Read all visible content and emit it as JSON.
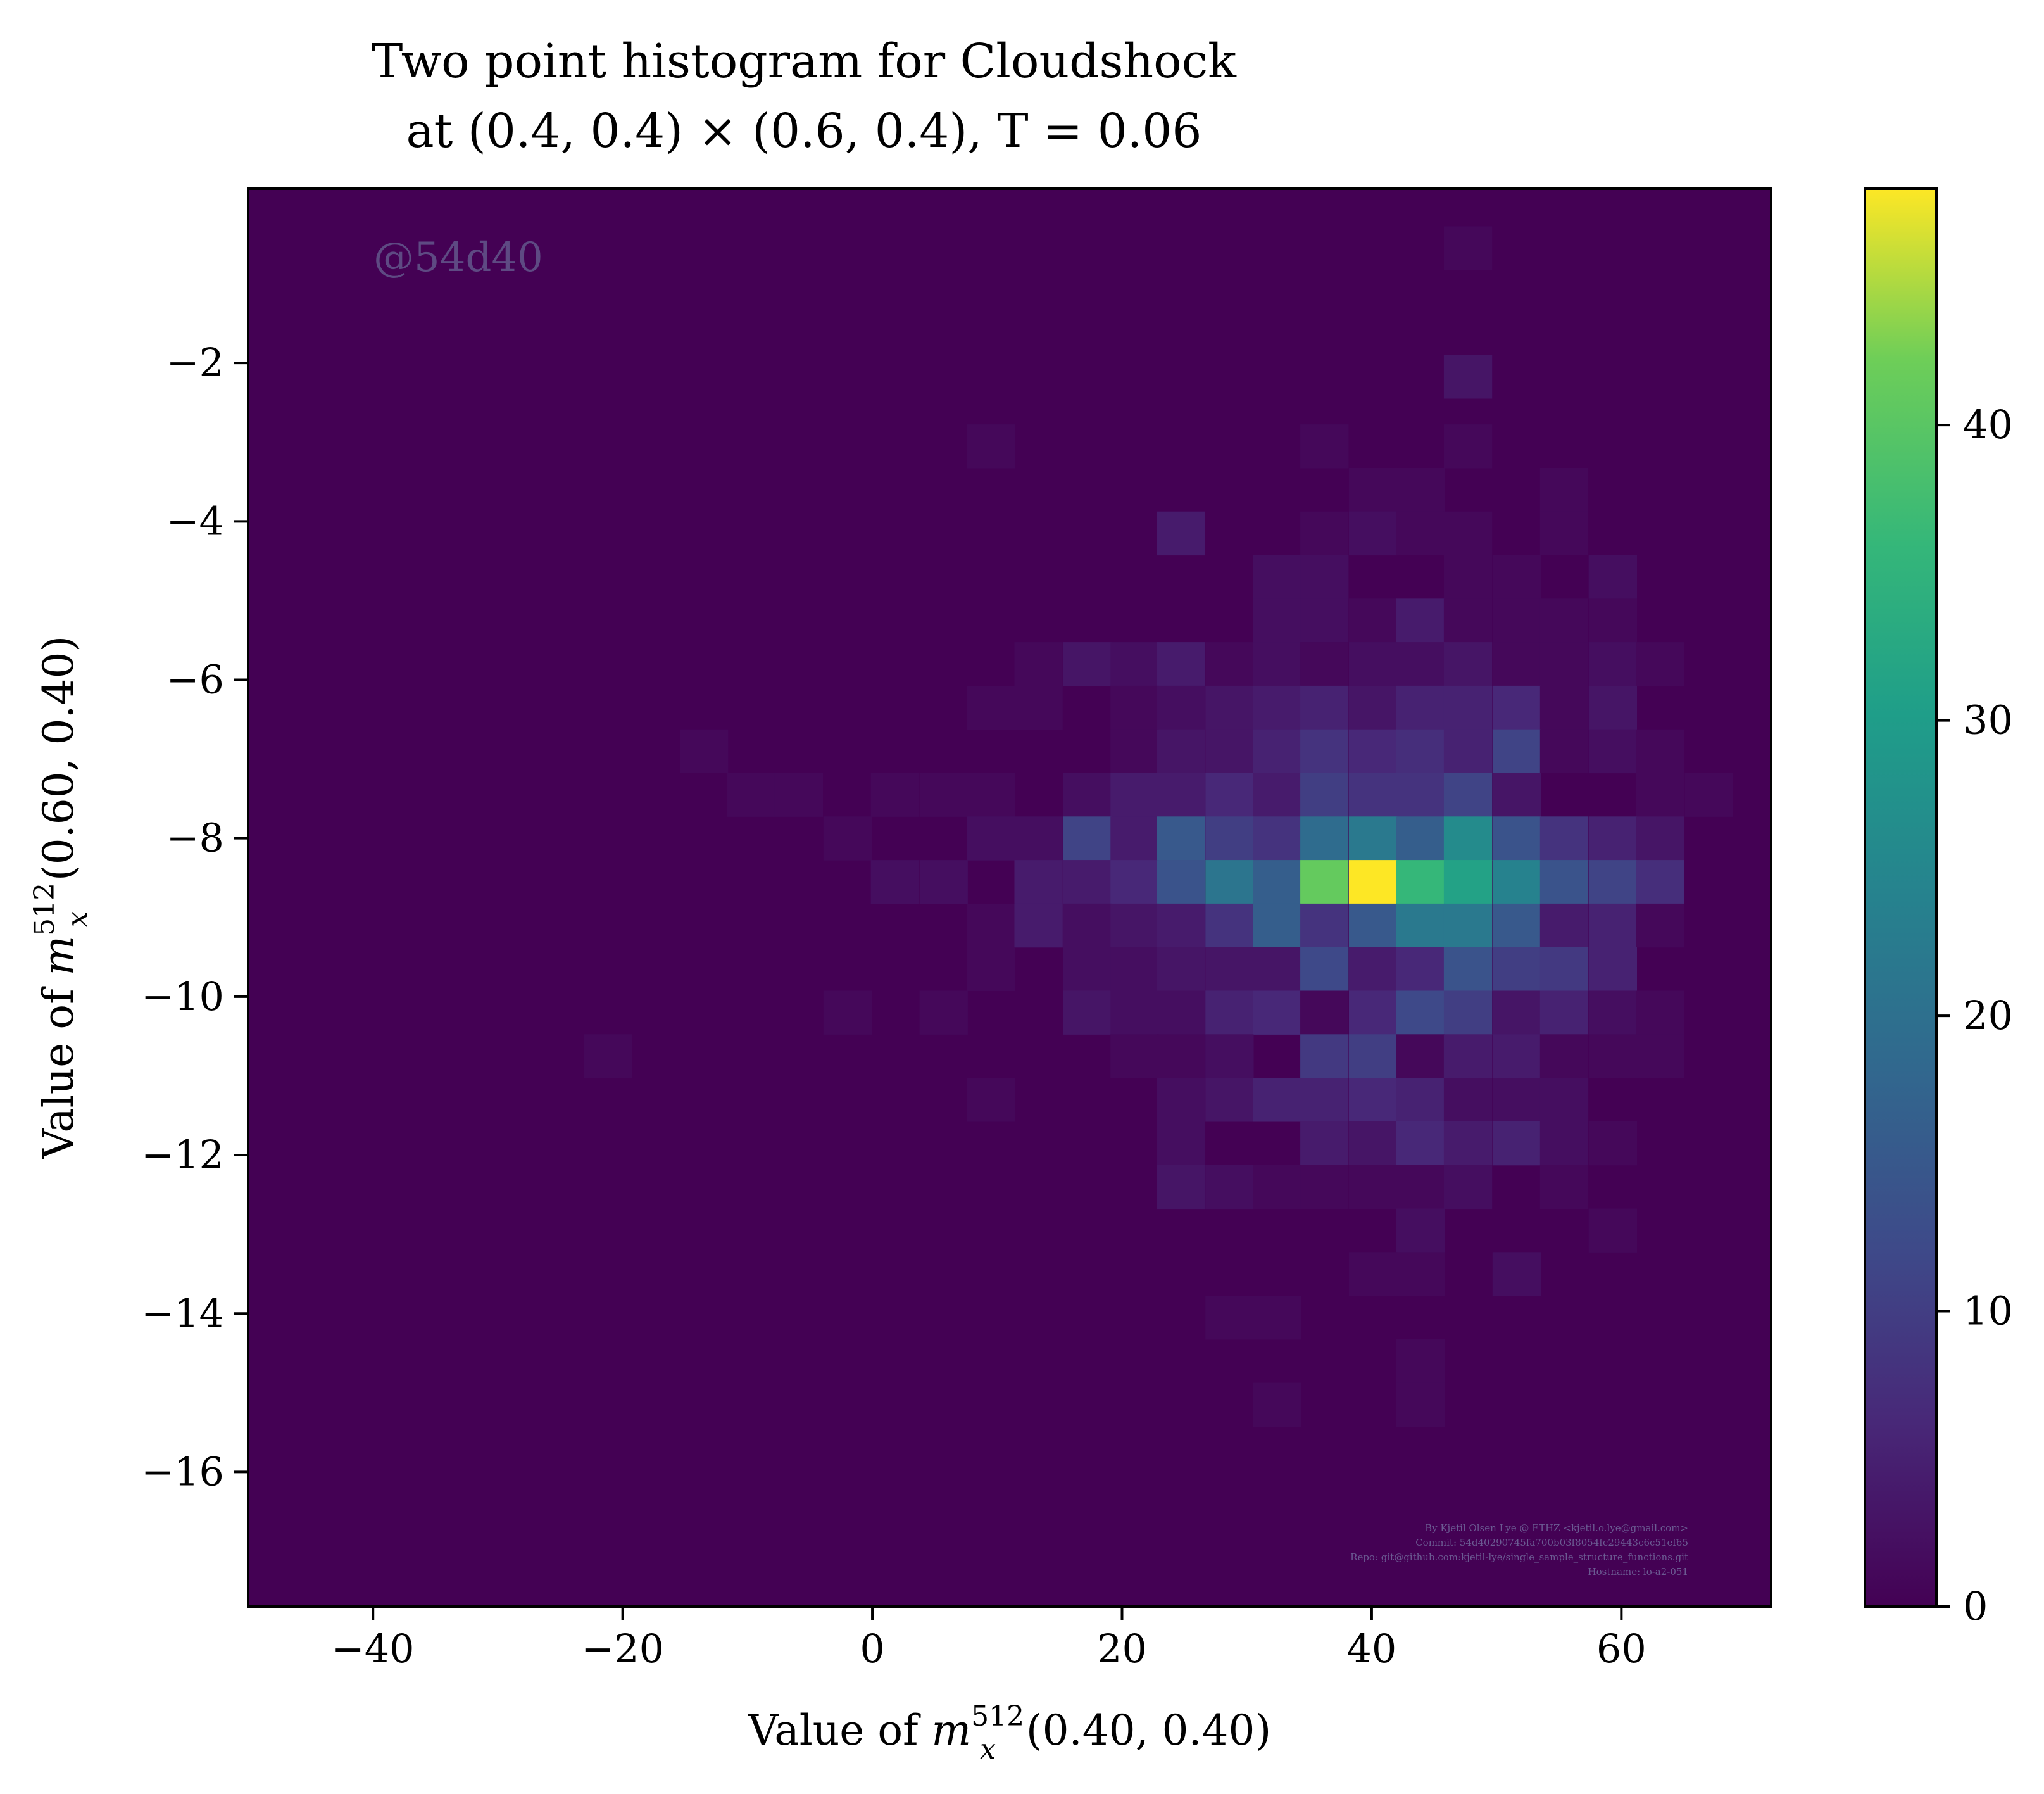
{
  "chart_data": {
    "type": "heatmap",
    "title_line1": "Two point histogram for Cloudshock",
    "title_line2": "at (0.4, 0.4) × (0.6, 0.4), T = 0.06",
    "xlabel": {
      "prefix": "Value of ",
      "var": "m",
      "sup": "512",
      "sub": "x",
      "suffix": "(0.40, 0.40)"
    },
    "ylabel": {
      "prefix": "Value of ",
      "var": "m",
      "sup": "512",
      "sub": "x",
      "suffix": "(0.60, 0.40)"
    },
    "xlim": [
      -50,
      72
    ],
    "ylim": [
      -17.7,
      0.2
    ],
    "xticks": [
      {
        "value": -40,
        "label": "−40"
      },
      {
        "value": -20,
        "label": "−20"
      },
      {
        "value": 0,
        "label": "0"
      },
      {
        "value": 20,
        "label": "20"
      },
      {
        "value": 40,
        "label": "40"
      },
      {
        "value": 60,
        "label": "60"
      }
    ],
    "yticks": [
      {
        "value": -2,
        "label": "−2"
      },
      {
        "value": -4,
        "label": "−4"
      },
      {
        "value": -6,
        "label": "−6"
      },
      {
        "value": -8,
        "label": "−8"
      },
      {
        "value": -10,
        "label": "−10"
      },
      {
        "value": -12,
        "label": "−12"
      },
      {
        "value": -14,
        "label": "−14"
      },
      {
        "value": -16,
        "label": "−16"
      }
    ],
    "colorbar": {
      "min": 0,
      "max": 48,
      "ticks": [
        {
          "value": 0,
          "label": "0"
        },
        {
          "value": 10,
          "label": "10"
        },
        {
          "value": 20,
          "label": "20"
        },
        {
          "value": 30,
          "label": "30"
        },
        {
          "value": 40,
          "label": "40"
        }
      ]
    },
    "bin_width_x": 3.84,
    "bin_height_y": 0.55,
    "cells": [
      [
        47.7,
        -0.55,
        1
      ],
      [
        47.7,
        -2.17,
        3
      ],
      [
        9.5,
        -3.05,
        1
      ],
      [
        36.2,
        -3.05,
        1
      ],
      [
        47.7,
        -3.05,
        1
      ],
      [
        40.1,
        -3.6,
        1
      ],
      [
        43.9,
        -3.6,
        1
      ],
      [
        55.4,
        -3.6,
        1
      ],
      [
        24.7,
        -4.15,
        4
      ],
      [
        36.2,
        -4.15,
        1
      ],
      [
        40.1,
        -4.15,
        2
      ],
      [
        43.9,
        -4.15,
        1
      ],
      [
        47.7,
        -4.15,
        1
      ],
      [
        55.4,
        -4.15,
        1
      ],
      [
        32.4,
        -4.7,
        2
      ],
      [
        36.2,
        -4.7,
        2
      ],
      [
        47.7,
        -4.7,
        1
      ],
      [
        51.6,
        -4.7,
        1
      ],
      [
        59.3,
        -4.7,
        2
      ],
      [
        32.4,
        -5.25,
        2
      ],
      [
        36.2,
        -5.25,
        2
      ],
      [
        40.1,
        -5.25,
        1
      ],
      [
        43.9,
        -5.25,
        4
      ],
      [
        47.7,
        -5.25,
        1
      ],
      [
        51.6,
        -5.25,
        1
      ],
      [
        55.4,
        -5.25,
        1
      ],
      [
        59.3,
        -5.25,
        1
      ],
      [
        13.3,
        -5.8,
        1
      ],
      [
        17.2,
        -5.8,
        3
      ],
      [
        21.0,
        -5.8,
        2
      ],
      [
        24.7,
        -5.8,
        4
      ],
      [
        28.6,
        -5.8,
        1
      ],
      [
        32.4,
        -5.8,
        2
      ],
      [
        36.2,
        -5.8,
        1
      ],
      [
        40.1,
        -5.8,
        2
      ],
      [
        43.9,
        -5.8,
        2
      ],
      [
        47.7,
        -5.8,
        3
      ],
      [
        51.6,
        -5.8,
        1
      ],
      [
        55.4,
        -5.8,
        1
      ],
      [
        59.3,
        -5.8,
        2
      ],
      [
        63.1,
        -5.8,
        1
      ],
      [
        9.5,
        -6.35,
        1
      ],
      [
        13.3,
        -6.35,
        1
      ],
      [
        21.0,
        -6.35,
        1
      ],
      [
        24.7,
        -6.35,
        2
      ],
      [
        28.6,
        -6.35,
        3
      ],
      [
        32.4,
        -6.35,
        4
      ],
      [
        36.2,
        -6.35,
        5
      ],
      [
        40.1,
        -6.35,
        3
      ],
      [
        43.9,
        -6.35,
        5
      ],
      [
        47.7,
        -6.35,
        5
      ],
      [
        51.6,
        -6.35,
        6
      ],
      [
        55.4,
        -6.35,
        1
      ],
      [
        59.3,
        -6.35,
        3
      ],
      [
        -13.5,
        -6.9,
        1
      ],
      [
        21.0,
        -6.9,
        1
      ],
      [
        24.7,
        -6.9,
        3
      ],
      [
        28.6,
        -6.9,
        3
      ],
      [
        32.4,
        -6.9,
        5
      ],
      [
        36.2,
        -6.9,
        8
      ],
      [
        40.1,
        -6.9,
        6
      ],
      [
        43.9,
        -6.9,
        7
      ],
      [
        47.7,
        -6.9,
        5
      ],
      [
        51.6,
        -6.9,
        11
      ],
      [
        55.4,
        -6.9,
        1
      ],
      [
        59.3,
        -6.9,
        2
      ],
      [
        63.1,
        -6.9,
        1
      ],
      [
        -9.7,
        -7.45,
        1
      ],
      [
        -5.9,
        -7.45,
        1
      ],
      [
        1.8,
        -7.45,
        1
      ],
      [
        5.7,
        -7.45,
        1
      ],
      [
        9.5,
        -7.45,
        1
      ],
      [
        17.2,
        -7.45,
        2
      ],
      [
        21.0,
        -7.45,
        4
      ],
      [
        24.7,
        -7.45,
        4
      ],
      [
        28.6,
        -7.45,
        6
      ],
      [
        32.4,
        -7.45,
        4
      ],
      [
        36.2,
        -7.45,
        10
      ],
      [
        40.1,
        -7.45,
        8
      ],
      [
        43.9,
        -7.45,
        8
      ],
      [
        47.7,
        -7.45,
        11
      ],
      [
        51.6,
        -7.45,
        3
      ],
      [
        63.1,
        -7.45,
        1
      ],
      [
        67.0,
        -7.45,
        1
      ],
      [
        -2.0,
        -8.0,
        1
      ],
      [
        9.5,
        -8.0,
        2
      ],
      [
        13.3,
        -8.0,
        2
      ],
      [
        17.2,
        -8.0,
        11
      ],
      [
        21.0,
        -8.0,
        4
      ],
      [
        24.7,
        -8.0,
        15
      ],
      [
        28.6,
        -8.0,
        10
      ],
      [
        32.4,
        -8.0,
        8
      ],
      [
        36.2,
        -8.0,
        19
      ],
      [
        40.1,
        -8.0,
        22
      ],
      [
        43.9,
        -8.0,
        16
      ],
      [
        47.7,
        -8.0,
        26
      ],
      [
        51.6,
        -8.0,
        14
      ],
      [
        55.4,
        -8.0,
        8
      ],
      [
        59.3,
        -8.0,
        5
      ],
      [
        63.1,
        -8.0,
        3
      ],
      [
        1.8,
        -8.55,
        2
      ],
      [
        5.7,
        -8.55,
        2
      ],
      [
        13.3,
        -8.55,
        4
      ],
      [
        17.2,
        -8.55,
        4
      ],
      [
        21.0,
        -8.55,
        6
      ],
      [
        24.7,
        -8.55,
        14
      ],
      [
        28.6,
        -8.55,
        21
      ],
      [
        32.4,
        -8.55,
        16
      ],
      [
        36.2,
        -8.55,
        41
      ],
      [
        40.1,
        -8.55,
        48
      ],
      [
        43.9,
        -8.55,
        36
      ],
      [
        47.7,
        -8.55,
        31
      ],
      [
        51.6,
        -8.55,
        24
      ],
      [
        55.4,
        -8.55,
        14
      ],
      [
        59.3,
        -8.55,
        11
      ],
      [
        63.1,
        -8.55,
        7
      ],
      [
        9.5,
        -9.1,
        1
      ],
      [
        13.3,
        -9.1,
        4
      ],
      [
        17.2,
        -9.1,
        2
      ],
      [
        21.0,
        -9.1,
        3
      ],
      [
        24.7,
        -9.1,
        4
      ],
      [
        28.6,
        -9.1,
        8
      ],
      [
        32.4,
        -9.1,
        16
      ],
      [
        36.2,
        -9.1,
        8
      ],
      [
        40.1,
        -9.1,
        15
      ],
      [
        43.9,
        -9.1,
        22
      ],
      [
        47.7,
        -9.1,
        22
      ],
      [
        51.6,
        -9.1,
        15
      ],
      [
        55.4,
        -9.1,
        4
      ],
      [
        59.3,
        -9.1,
        5
      ],
      [
        63.1,
        -9.1,
        1
      ],
      [
        9.5,
        -9.65,
        1
      ],
      [
        17.2,
        -9.65,
        2
      ],
      [
        21.0,
        -9.65,
        2
      ],
      [
        24.7,
        -9.65,
        3
      ],
      [
        28.6,
        -9.65,
        3
      ],
      [
        32.4,
        -9.65,
        3
      ],
      [
        36.2,
        -9.65,
        12
      ],
      [
        40.1,
        -9.65,
        4
      ],
      [
        43.9,
        -9.65,
        6
      ],
      [
        47.7,
        -9.65,
        14
      ],
      [
        51.6,
        -9.65,
        10
      ],
      [
        55.4,
        -9.65,
        9
      ],
      [
        59.3,
        -9.65,
        5
      ],
      [
        -2.0,
        -10.2,
        1
      ],
      [
        5.7,
        -10.2,
        1
      ],
      [
        17.2,
        -10.2,
        3
      ],
      [
        21.0,
        -10.2,
        2
      ],
      [
        24.7,
        -10.2,
        2
      ],
      [
        28.6,
        -10.2,
        5
      ],
      [
        32.4,
        -10.2,
        6
      ],
      [
        36.2,
        -10.2,
        1
      ],
      [
        40.1,
        -10.2,
        6
      ],
      [
        43.9,
        -10.2,
        12
      ],
      [
        47.7,
        -10.2,
        10
      ],
      [
        51.6,
        -10.2,
        3
      ],
      [
        55.4,
        -10.2,
        5
      ],
      [
        59.3,
        -10.2,
        2
      ],
      [
        63.1,
        -10.2,
        1
      ],
      [
        -21.2,
        -10.75,
        1
      ],
      [
        21.0,
        -10.75,
        1
      ],
      [
        24.7,
        -10.75,
        1
      ],
      [
        28.6,
        -10.75,
        2
      ],
      [
        36.2,
        -10.75,
        9
      ],
      [
        40.1,
        -10.75,
        10
      ],
      [
        43.9,
        -10.75,
        1
      ],
      [
        47.7,
        -10.75,
        4
      ],
      [
        51.6,
        -10.75,
        4
      ],
      [
        55.4,
        -10.75,
        1
      ],
      [
        59.3,
        -10.75,
        1
      ],
      [
        63.1,
        -10.75,
        1
      ],
      [
        9.5,
        -11.3,
        1
      ],
      [
        24.7,
        -11.3,
        2
      ],
      [
        28.6,
        -11.3,
        3
      ],
      [
        32.4,
        -11.3,
        5
      ],
      [
        36.2,
        -11.3,
        5
      ],
      [
        40.1,
        -11.3,
        6
      ],
      [
        43.9,
        -11.3,
        5
      ],
      [
        47.7,
        -11.3,
        2
      ],
      [
        51.6,
        -11.3,
        2
      ],
      [
        55.4,
        -11.3,
        2
      ],
      [
        24.7,
        -11.85,
        2
      ],
      [
        36.2,
        -11.85,
        4
      ],
      [
        40.1,
        -11.85,
        3
      ],
      [
        43.9,
        -11.85,
        6
      ],
      [
        47.7,
        -11.85,
        4
      ],
      [
        51.6,
        -11.85,
        5
      ],
      [
        55.4,
        -11.85,
        2
      ],
      [
        59.3,
        -11.85,
        1
      ],
      [
        24.7,
        -12.4,
        3
      ],
      [
        28.6,
        -12.4,
        2
      ],
      [
        32.4,
        -12.4,
        1
      ],
      [
        36.2,
        -12.4,
        1
      ],
      [
        40.1,
        -12.4,
        1
      ],
      [
        43.9,
        -12.4,
        1
      ],
      [
        47.7,
        -12.4,
        2
      ],
      [
        55.4,
        -12.4,
        1
      ],
      [
        43.9,
        -12.95,
        2
      ],
      [
        59.3,
        -12.95,
        1
      ],
      [
        40.1,
        -13.5,
        1
      ],
      [
        43.9,
        -13.5,
        1
      ],
      [
        51.6,
        -13.5,
        2
      ],
      [
        28.6,
        -14.05,
        1
      ],
      [
        32.4,
        -14.05,
        1
      ],
      [
        43.9,
        -14.6,
        1
      ],
      [
        32.4,
        -15.15,
        1
      ],
      [
        43.9,
        -15.15,
        1
      ]
    ],
    "watermark": "@54d40",
    "credits": [
      "By Kjetil Olsen Lye @ ETHZ <kjetil.o.lye@gmail.com>",
      "Commit: 54d40290745fa700b03f8054fc29443c6c51ef65",
      "Repo: git@github.com:kjetil-lye/single_sample_structure_functions.git",
      "Hostname: lo-a2-051"
    ]
  }
}
